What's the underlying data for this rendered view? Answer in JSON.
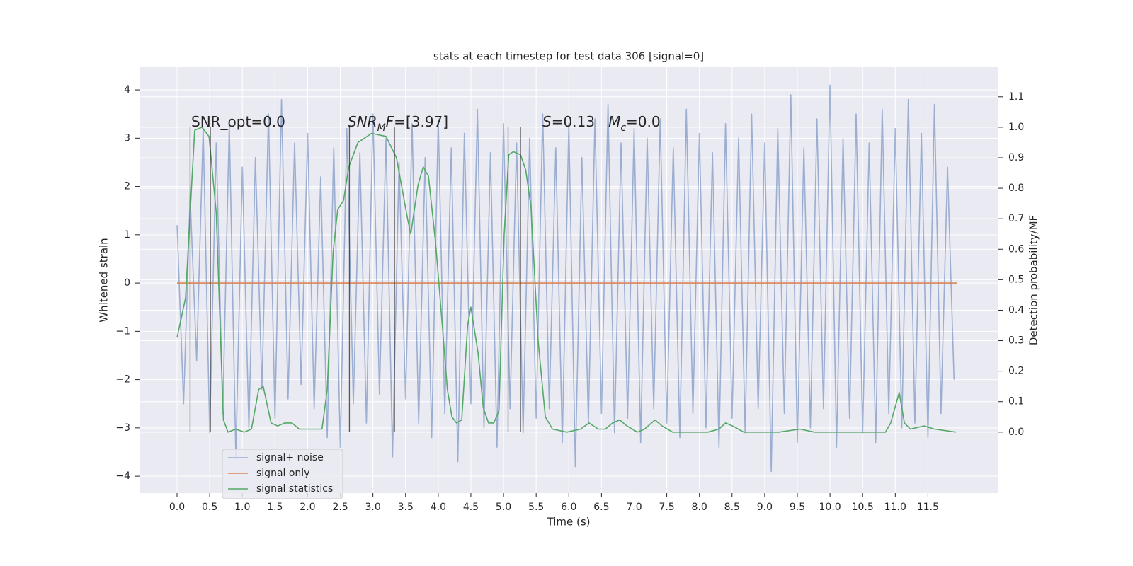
{
  "chart_data": {
    "type": "line",
    "title": "stats at each timestep for test data 306 [signal=0]",
    "xlabel": "Time (s)",
    "ylabel": "Whitened strain",
    "y2label": "Detection probability/MF",
    "xlim": [
      -0.575,
      12.58
    ],
    "ylim": [
      -4.35,
      4.47
    ],
    "y2lim": [
      -0.2,
      1.197
    ],
    "xticks": [
      {
        "value": 0,
        "label": "0.0"
      },
      {
        "value": 0.5,
        "label": "0.5"
      },
      {
        "value": 1,
        "label": "1.0"
      },
      {
        "value": 1.5,
        "label": "1.5"
      },
      {
        "value": 2,
        "label": "2.0"
      },
      {
        "value": 2.5,
        "label": "2.5"
      },
      {
        "value": 3,
        "label": "3.0"
      },
      {
        "value": 3.5,
        "label": "3.5"
      },
      {
        "value": 4,
        "label": "4.0"
      },
      {
        "value": 4.5,
        "label": "4.5"
      },
      {
        "value": 5,
        "label": "5.0"
      },
      {
        "value": 5.5,
        "label": "5.5"
      },
      {
        "value": 6,
        "label": "6.0"
      },
      {
        "value": 6.5,
        "label": "6.5"
      },
      {
        "value": 7,
        "label": "7.0"
      },
      {
        "value": 7.5,
        "label": "7.5"
      },
      {
        "value": 8,
        "label": "8.0"
      },
      {
        "value": 8.5,
        "label": "8.5"
      },
      {
        "value": 9,
        "label": "9.0"
      },
      {
        "value": 9.5,
        "label": "9.5"
      },
      {
        "value": 10,
        "label": "10.0"
      },
      {
        "value": 10.5,
        "label": "10.5"
      },
      {
        "value": 11,
        "label": "11.0"
      },
      {
        "value": 11.5,
        "label": "11.5"
      }
    ],
    "yticks": [
      {
        "value": -4,
        "label": "−4"
      },
      {
        "value": -3,
        "label": "−3"
      },
      {
        "value": -2,
        "label": "−2"
      },
      {
        "value": -1,
        "label": "−1"
      },
      0,
      1,
      2,
      3,
      4
    ],
    "y2ticks": [
      {
        "value": 0,
        "label": "0.0"
      },
      {
        "value": 0.1,
        "label": "0.1"
      },
      {
        "value": 0.2,
        "label": "0.2"
      },
      {
        "value": 0.3,
        "label": "0.3"
      },
      {
        "value": 0.4,
        "label": "0.4"
      },
      {
        "value": 0.5,
        "label": "0.5"
      },
      {
        "value": 0.6,
        "label": "0.6"
      },
      {
        "value": 0.7,
        "label": "0.7"
      },
      {
        "value": 0.8,
        "label": "0.8"
      },
      {
        "value": 0.9,
        "label": "0.9"
      },
      {
        "value": 1,
        "label": "1.0"
      },
      {
        "value": 1.1,
        "label": "1.1"
      }
    ],
    "grid": true,
    "legend": "lower left",
    "series": [
      {
        "name": "signal+ noise",
        "color": "#4c72b0",
        "opacity": 0.5,
        "x": [
          0.0,
          0.1,
          0.2,
          0.3,
          0.4,
          0.5,
          0.6,
          0.7,
          0.8,
          0.9,
          1.0,
          1.1,
          1.2,
          1.3,
          1.4,
          1.5,
          1.6,
          1.7,
          1.8,
          1.9,
          2.0,
          2.1,
          2.2,
          2.3,
          2.4,
          2.5,
          2.6,
          2.7,
          2.8,
          2.9,
          3.0,
          3.1,
          3.2,
          3.3,
          3.4,
          3.5,
          3.6,
          3.7,
          3.8,
          3.9,
          4.0,
          4.1,
          4.2,
          4.3,
          4.4,
          4.5,
          4.6,
          4.7,
          4.8,
          4.9,
          5.0,
          5.1,
          5.2,
          5.3,
          5.4,
          5.5,
          5.6,
          5.7,
          5.8,
          5.9,
          6.0,
          6.1,
          6.2,
          6.3,
          6.4,
          6.5,
          6.6,
          6.7,
          6.8,
          6.9,
          7.0,
          7.1,
          7.2,
          7.3,
          7.4,
          7.5,
          7.6,
          7.7,
          7.8,
          7.9,
          8.0,
          8.1,
          8.2,
          8.3,
          8.4,
          8.5,
          8.6,
          8.7,
          8.8,
          8.9,
          9.0,
          9.1,
          9.2,
          9.3,
          9.4,
          9.5,
          9.6,
          9.7,
          9.8,
          9.9,
          10.0,
          10.1,
          10.2,
          10.3,
          10.4,
          10.5,
          10.6,
          10.7,
          10.8,
          10.9,
          11.0,
          11.1,
          11.2,
          11.3,
          11.4,
          11.5,
          11.6,
          11.7,
          11.8,
          11.9
        ],
        "values": [
          1.2,
          -2.5,
          1.8,
          -1.6,
          3.2,
          -3.1,
          2.9,
          -2.7,
          3.3,
          -3.6,
          2.4,
          -3.0,
          2.6,
          -2.2,
          3.5,
          -2.8,
          3.8,
          -2.4,
          2.9,
          -2.1,
          3.1,
          -2.6,
          2.2,
          -3.2,
          2.8,
          -3.4,
          3.2,
          -2.5,
          2.7,
          -2.9,
          3.5,
          -2.3,
          3.0,
          -3.6,
          2.5,
          -2.4,
          3.3,
          -2.9,
          2.6,
          -3.2,
          3.4,
          -2.7,
          2.8,
          -3.7,
          3.1,
          -2.5,
          3.6,
          -3.0,
          2.7,
          -3.4,
          3.3,
          -2.6,
          2.9,
          -3.1,
          3.0,
          -2.8,
          3.5,
          -2.6,
          2.8,
          -3.3,
          3.3,
          -3.8,
          2.6,
          -2.9,
          3.4,
          -2.7,
          3.7,
          -3.1,
          2.9,
          -2.8,
          3.2,
          -3.3,
          3.0,
          -2.6,
          3.4,
          -2.9,
          2.8,
          -3.2,
          3.6,
          -2.7,
          3.1,
          -3.0,
          2.7,
          -3.4,
          3.3,
          -2.8,
          3.0,
          -3.1,
          3.5,
          -2.6,
          2.9,
          -3.9,
          3.2,
          -2.7,
          3.9,
          -3.3,
          2.8,
          -3.0,
          3.4,
          -2.6,
          4.1,
          -3.4,
          3.0,
          -2.8,
          3.5,
          -3.1,
          2.9,
          -3.3,
          3.6,
          -2.7,
          3.2,
          -3.0,
          3.8,
          -2.9,
          3.1,
          -3.2,
          3.7,
          -2.7,
          2.4,
          -2.0
        ]
      },
      {
        "name": "signal only",
        "color": "#dd8452",
        "opacity": 1,
        "x": [
          0.0,
          11.95
        ],
        "values": [
          0,
          0
        ]
      },
      {
        "name": "signal statistics",
        "color": "#55a868",
        "opacity": 1,
        "axis": "y2",
        "x": [
          0,
          0.13,
          0.2,
          0.27,
          0.38,
          0.49,
          0.6,
          0.71,
          0.78,
          0.9,
          1.03,
          1.14,
          1.25,
          1.32,
          1.44,
          1.54,
          1.65,
          1.76,
          1.87,
          2.08,
          2.22,
          2.3,
          2.39,
          2.46,
          2.55,
          2.63,
          2.77,
          2.98,
          3.2,
          3.36,
          3.53,
          3.58,
          3.69,
          3.77,
          3.85,
          3.96,
          4.07,
          4.14,
          4.21,
          4.28,
          4.36,
          4.45,
          4.5,
          4.61,
          4.69,
          4.77,
          4.85,
          4.93,
          5.01,
          5.08,
          5.15,
          5.26,
          5.34,
          5.42,
          5.53,
          5.64,
          5.75,
          5.97,
          6.18,
          6.31,
          6.45,
          6.56,
          6.67,
          6.78,
          6.89,
          7.05,
          7.16,
          7.32,
          7.43,
          7.59,
          8.13,
          8.3,
          8.4,
          8.51,
          8.68,
          9.22,
          9.54,
          9.76,
          10.3,
          10.85,
          10.93,
          11.06,
          11.14,
          11.23,
          11.44,
          11.6,
          11.93
        ],
        "values": [
          0.31,
          0.44,
          0.72,
          0.99,
          1.0,
          0.97,
          0.72,
          0.04,
          0.0,
          0.01,
          0.0,
          0.01,
          0.14,
          0.15,
          0.03,
          0.02,
          0.03,
          0.03,
          0.01,
          0.01,
          0.01,
          0.14,
          0.59,
          0.73,
          0.76,
          0.87,
          0.95,
          0.98,
          0.97,
          0.9,
          0.7,
          0.65,
          0.81,
          0.87,
          0.84,
          0.62,
          0.33,
          0.14,
          0.05,
          0.03,
          0.04,
          0.35,
          0.41,
          0.26,
          0.08,
          0.03,
          0.03,
          0.07,
          0.65,
          0.91,
          0.92,
          0.91,
          0.86,
          0.74,
          0.3,
          0.05,
          0.01,
          0.0,
          0.01,
          0.03,
          0.01,
          0.01,
          0.03,
          0.04,
          0.02,
          0.0,
          0.01,
          0.04,
          0.02,
          0.0,
          0.0,
          0.01,
          0.03,
          0.02,
          0.0,
          0.0,
          0.01,
          0.0,
          0.0,
          0.0,
          0.03,
          0.13,
          0.03,
          0.01,
          0.02,
          0.01,
          0.0
        ]
      }
    ],
    "event_lines": {
      "color": "#333333",
      "x": [
        0.2,
        0.51,
        2.64,
        3.33,
        5.07,
        5.26
      ],
      "y2_range": [
        0,
        1
      ]
    },
    "annotations": [
      [
        {
          "text": "SNR_opt=0.0"
        }
      ],
      [
        {
          "text": "SNR",
          "italic": true
        },
        {
          "text": "M",
          "italic": true,
          "sub": true
        },
        {
          "text": "F",
          "italic": true
        },
        {
          "text": "=[3.97]"
        }
      ],
      [
        {
          "text": "S",
          "italic": true
        },
        {
          "text": "=0.13   "
        },
        {
          "text": "M",
          "italic": true
        },
        {
          "text": "c",
          "italic": true,
          "sub": true
        },
        {
          "text": "=0.0"
        }
      ]
    ]
  }
}
